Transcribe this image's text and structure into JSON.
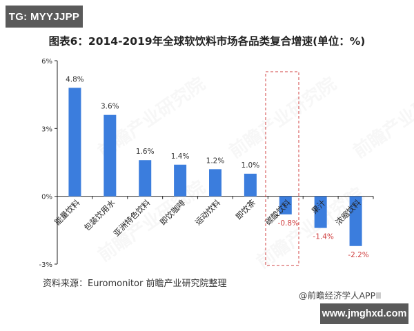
{
  "header": {
    "tag_top": "TG: MYYJJPP",
    "title": "图表6：2014-2019年全球软饮料市场各品类复合增速(单位：%)"
  },
  "footer": {
    "source": "资料来源：Euromonitor 前瞻产业研究院整理",
    "credit": "@前瞻经济学人APP",
    "tag_bottom": "www.jmghxd.com"
  },
  "watermark": "前瞻产业研究院",
  "colors": {
    "bar": "#3b7ddd",
    "positive_label": "#333333",
    "negative_label": "#d04040",
    "highlight_box": "#d04040",
    "tag_bg": "#5a5a5a"
  },
  "chart_data": {
    "type": "bar",
    "title": "图表6：2014-2019年全球软饮料市场各品类复合增速(单位：%)",
    "xlabel": "",
    "ylabel": "",
    "categories": [
      "能量饮料",
      "包装饮用水",
      "亚洲特色饮料",
      "即饮咖啡",
      "运动饮料",
      "即饮茶",
      "碳酸饮料",
      "果汁",
      "浓缩饮料"
    ],
    "values": [
      4.8,
      3.6,
      1.6,
      1.4,
      1.2,
      1.0,
      -0.8,
      -1.4,
      -2.2
    ],
    "data_labels": [
      "4.8%",
      "3.6%",
      "1.6%",
      "1.4%",
      "1.2%",
      "1.0%",
      "-0.8%",
      "-1.4%",
      "-2.2%"
    ],
    "ylim": [
      -3,
      6
    ],
    "yticks": [
      -3,
      0,
      3,
      6
    ],
    "ytick_labels": [
      "-3%",
      "0%",
      "3%",
      "6%"
    ],
    "grid": false,
    "legend": null,
    "highlight": {
      "category": "碳酸饮料",
      "style": "red dashed box"
    },
    "source": "资料来源：Euromonitor 前瞻产业研究院整理"
  }
}
